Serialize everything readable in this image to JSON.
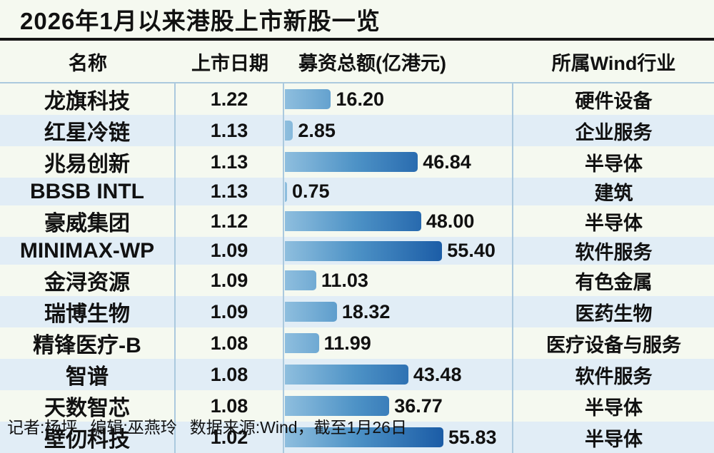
{
  "title": "2026年1月以来港股上市新股一览",
  "header": {
    "name": "名称",
    "date": "上市日期",
    "amount": "募资总额(亿港元)",
    "industry": "所属Wind行业"
  },
  "footer": {
    "reporter": "记者:杨坪",
    "editor": "编辑:巫燕玲",
    "source": "数据来源:Wind，截至1月26日"
  },
  "colors": {
    "page_bg": "#f5f9f0",
    "stripe_even": "#e1edf6",
    "divider": "#abc9de",
    "title_rule": "#161616",
    "bar_start": "#8ebede",
    "bar_mid": "#4d92c6",
    "bar_end": "#1b5ca6",
    "text": "#111111"
  },
  "table": {
    "rows": [
      {
        "name": "龙旗科技",
        "date": "1.22",
        "amount": 16.2,
        "amount_label": "16.20",
        "industry": "硬件设备"
      },
      {
        "name": "红星冷链",
        "date": "1.13",
        "amount": 2.85,
        "amount_label": "2.85",
        "industry": "企业服务"
      },
      {
        "name": "兆易创新",
        "date": "1.13",
        "amount": 46.84,
        "amount_label": "46.84",
        "industry": "半导体"
      },
      {
        "name": "BBSB INTL",
        "date": "1.13",
        "amount": 0.75,
        "amount_label": "0.75",
        "industry": "建筑"
      },
      {
        "name": "豪威集团",
        "date": "1.12",
        "amount": 48.0,
        "amount_label": "48.00",
        "industry": "半导体"
      },
      {
        "name": "MINIMAX-WP",
        "date": "1.09",
        "amount": 55.4,
        "amount_label": "55.40",
        "industry": "软件服务"
      },
      {
        "name": "金浔资源",
        "date": "1.09",
        "amount": 11.03,
        "amount_label": "11.03",
        "industry": "有色金属"
      },
      {
        "name": "瑞博生物",
        "date": "1.09",
        "amount": 18.32,
        "amount_label": "18.32",
        "industry": "医药生物"
      },
      {
        "name": "精锋医疗-B",
        "date": "1.08",
        "amount": 11.99,
        "amount_label": "11.99",
        "industry": "医疗设备与服务"
      },
      {
        "name": "智谱",
        "date": "1.08",
        "amount": 43.48,
        "amount_label": "43.48",
        "industry": "软件服务"
      },
      {
        "name": "天数智芯",
        "date": "1.08",
        "amount": 36.77,
        "amount_label": "36.77",
        "industry": "半导体"
      },
      {
        "name": "壁仞科技",
        "date": "1.02",
        "amount": 55.83,
        "amount_label": "55.83",
        "industry": "半导体"
      }
    ]
  },
  "chart_data": {
    "type": "bar",
    "orientation": "horizontal",
    "title": "2026年1月以来港股上市新股一览",
    "value_axis_label": "募资总额(亿港元)",
    "categories": [
      "龙旗科技",
      "红星冷链",
      "兆易创新",
      "BBSB INTL",
      "豪威集团",
      "MINIMAX-WP",
      "金浔资源",
      "瑞博生物",
      "精锋医疗-B",
      "智谱",
      "天数智芯",
      "壁仞科技"
    ],
    "values": [
      16.2,
      2.85,
      46.84,
      0.75,
      48.0,
      55.4,
      11.03,
      18.32,
      11.99,
      43.48,
      36.77,
      55.83
    ],
    "listing_dates": [
      "1.22",
      "1.13",
      "1.13",
      "1.13",
      "1.12",
      "1.09",
      "1.09",
      "1.09",
      "1.08",
      "1.08",
      "1.08",
      "1.02"
    ],
    "industries": [
      "硬件设备",
      "企业服务",
      "半导体",
      "建筑",
      "半导体",
      "软件服务",
      "有色金属",
      "医药生物",
      "医疗设备与服务",
      "软件服务",
      "半导体",
      "半导体"
    ],
    "xlim": [
      0,
      56
    ],
    "grid": false,
    "legend": false,
    "data_labels": true
  }
}
